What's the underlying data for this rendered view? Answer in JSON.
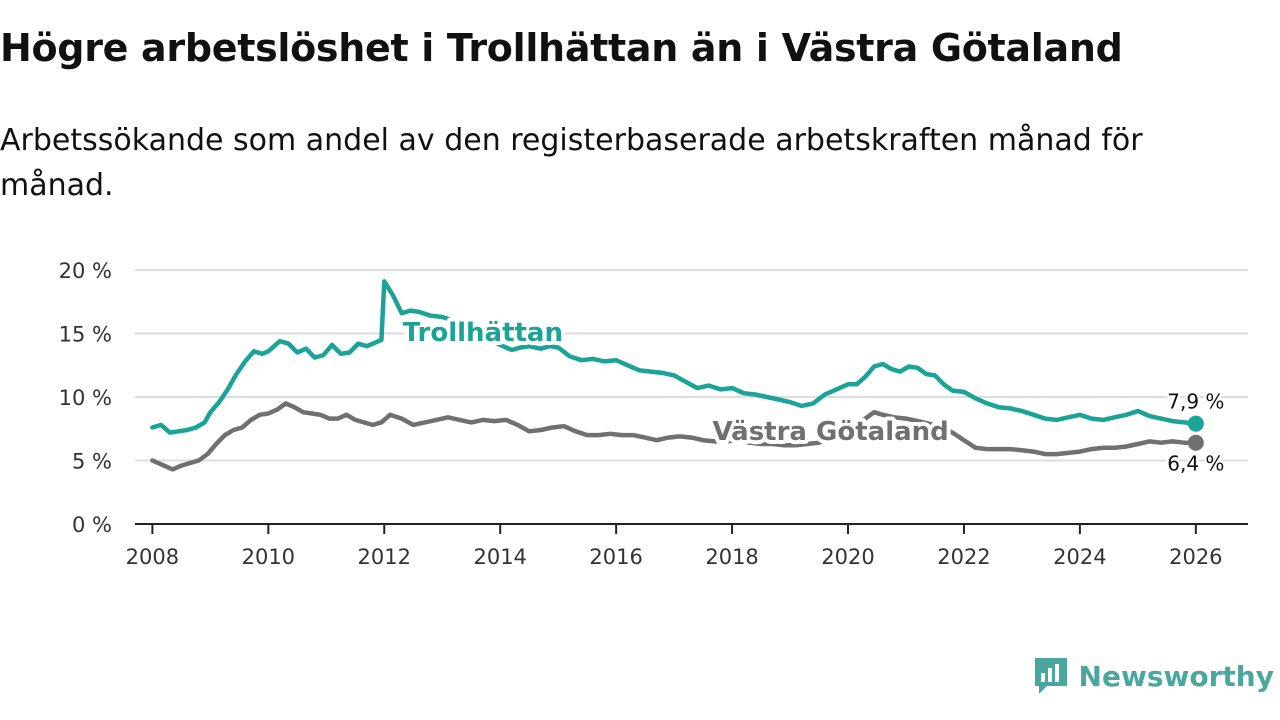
{
  "header": {
    "title": "Högre arbetslöshet i Trollhättan än i Västra Götaland",
    "subtitle": "Arbetssökande som andel av den registerbaserade arbetskraften månad för månad."
  },
  "brand": {
    "name": "Newsworthy",
    "icon": "newsworthy-logo-icon"
  },
  "colors": {
    "trollhattan": "#1aa396",
    "vastra": "#707073",
    "grid": "#dddddd",
    "axis": "#222222"
  },
  "chart_data": {
    "type": "line",
    "title": "Högre arbetslöshet i Trollhättan än i Västra Götaland",
    "subtitle": "Arbetssökande som andel av den registerbaserade arbetskraften månad för månad.",
    "xlabel": "",
    "ylabel": "",
    "xlim": [
      2007.7,
      2026.9
    ],
    "ylim": [
      0,
      20
    ],
    "x_ticks": [
      2008,
      2010,
      2012,
      2014,
      2016,
      2018,
      2020,
      2022,
      2024,
      2026
    ],
    "x_tick_labels": [
      "2008",
      "2010",
      "2012",
      "2014",
      "2016",
      "2018",
      "2020",
      "2022",
      "2024",
      "2026"
    ],
    "y_ticks": [
      0,
      5,
      10,
      15,
      20
    ],
    "y_tick_labels": [
      "0 %",
      "5 %",
      "10 %",
      "15 %",
      "20 %"
    ],
    "grid": true,
    "series": [
      {
        "name": "Trollhättan",
        "end_label": "7,9 %",
        "x": [
          2008.0,
          2008.15,
          2008.3,
          2008.45,
          2008.6,
          2008.75,
          2008.9,
          2009.0,
          2009.15,
          2009.3,
          2009.45,
          2009.6,
          2009.75,
          2009.9,
          2010.0,
          2010.2,
          2010.35,
          2010.5,
          2010.65,
          2010.8,
          2010.95,
          2011.1,
          2011.25,
          2011.4,
          2011.55,
          2011.7,
          2011.85,
          2011.95,
          2012.0,
          2012.15,
          2012.3,
          2012.45,
          2012.6,
          2012.8,
          2013.0,
          2013.2,
          2013.4,
          2013.6,
          2013.8,
          2014.0,
          2014.2,
          2014.35,
          2014.5,
          2014.7,
          2014.85,
          2015.0,
          2015.2,
          2015.4,
          2015.6,
          2015.8,
          2016.0,
          2016.2,
          2016.4,
          2016.6,
          2016.8,
          2017.0,
          2017.2,
          2017.4,
          2017.6,
          2017.8,
          2018.0,
          2018.2,
          2018.4,
          2018.6,
          2018.8,
          2019.0,
          2019.2,
          2019.4,
          2019.6,
          2019.8,
          2020.0,
          2020.15,
          2020.3,
          2020.45,
          2020.6,
          2020.75,
          2020.9,
          2021.05,
          2021.2,
          2021.35,
          2021.5,
          2021.65,
          2021.8,
          2022.0,
          2022.2,
          2022.4,
          2022.6,
          2022.8,
          2023.0,
          2023.2,
          2023.4,
          2023.6,
          2023.8,
          2024.0,
          2024.2,
          2024.4,
          2024.6,
          2024.8,
          2025.0,
          2025.2,
          2025.4,
          2025.6,
          2025.8,
          2026.0
        ],
        "values": [
          7.6,
          7.8,
          7.2,
          7.3,
          7.4,
          7.6,
          8.0,
          8.8,
          9.6,
          10.6,
          11.8,
          12.8,
          13.6,
          13.4,
          13.6,
          14.4,
          14.2,
          13.5,
          13.8,
          13.1,
          13.3,
          14.1,
          13.4,
          13.5,
          14.2,
          14.0,
          14.3,
          14.5,
          19.1,
          18.0,
          16.6,
          16.8,
          16.7,
          16.4,
          16.3,
          16.0,
          15.8,
          15.3,
          14.6,
          14.1,
          13.7,
          13.9,
          14.0,
          13.8,
          14.0,
          13.9,
          13.2,
          12.9,
          13.0,
          12.8,
          12.9,
          12.5,
          12.1,
          12.0,
          11.9,
          11.7,
          11.2,
          10.7,
          10.9,
          10.6,
          10.7,
          10.3,
          10.2,
          10.0,
          9.8,
          9.6,
          9.3,
          9.5,
          10.2,
          10.6,
          11.0,
          11.0,
          11.6,
          12.4,
          12.6,
          12.2,
          12.0,
          12.4,
          12.3,
          11.8,
          11.7,
          11.0,
          10.5,
          10.4,
          9.9,
          9.5,
          9.2,
          9.1,
          8.9,
          8.6,
          8.3,
          8.2,
          8.4,
          8.6,
          8.3,
          8.2,
          8.4,
          8.6,
          8.9,
          8.5,
          8.3,
          8.1,
          8.0,
          7.9
        ]
      },
      {
        "name": "Västra Götaland",
        "end_label": "6,4 %",
        "x": [
          2008.0,
          2008.15,
          2008.35,
          2008.5,
          2008.65,
          2008.8,
          2008.95,
          2009.1,
          2009.25,
          2009.4,
          2009.55,
          2009.7,
          2009.85,
          2010.0,
          2010.15,
          2010.3,
          2010.45,
          2010.6,
          2010.75,
          2010.9,
          2011.05,
          2011.2,
          2011.35,
          2011.5,
          2011.65,
          2011.8,
          2011.95,
          2012.1,
          2012.3,
          2012.5,
          2012.7,
          2012.9,
          2013.1,
          2013.3,
          2013.5,
          2013.7,
          2013.9,
          2014.1,
          2014.3,
          2014.5,
          2014.7,
          2014.9,
          2015.1,
          2015.3,
          2015.5,
          2015.7,
          2015.9,
          2016.1,
          2016.3,
          2016.5,
          2016.7,
          2016.9,
          2017.1,
          2017.3,
          2017.5,
          2017.7,
          2017.9,
          2018.1,
          2018.3,
          2018.5,
          2018.7,
          2018.9,
          2019.1,
          2019.3,
          2019.5,
          2019.7,
          2019.9,
          2020.1,
          2020.3,
          2020.45,
          2020.6,
          2020.8,
          2021.0,
          2021.2,
          2021.4,
          2021.6,
          2021.8,
          2022.0,
          2022.2,
          2022.4,
          2022.6,
          2022.8,
          2023.0,
          2023.2,
          2023.4,
          2023.6,
          2023.8,
          2024.0,
          2024.2,
          2024.4,
          2024.6,
          2024.8,
          2025.0,
          2025.2,
          2025.4,
          2025.6,
          2025.8,
          2026.0
        ],
        "values": [
          5.0,
          4.7,
          4.3,
          4.6,
          4.8,
          5.0,
          5.5,
          6.3,
          7.0,
          7.4,
          7.6,
          8.2,
          8.6,
          8.7,
          9.0,
          9.5,
          9.2,
          8.8,
          8.7,
          8.6,
          8.3,
          8.3,
          8.6,
          8.2,
          8.0,
          7.8,
          8.0,
          8.6,
          8.3,
          7.8,
          8.0,
          8.2,
          8.4,
          8.2,
          8.0,
          8.2,
          8.1,
          8.2,
          7.8,
          7.3,
          7.4,
          7.6,
          7.7,
          7.3,
          7.0,
          7.0,
          7.1,
          7.0,
          7.0,
          6.8,
          6.6,
          6.8,
          6.9,
          6.8,
          6.6,
          6.5,
          6.5,
          6.6,
          6.4,
          6.3,
          6.3,
          6.2,
          6.2,
          6.3,
          6.4,
          6.8,
          7.4,
          7.8,
          8.3,
          8.8,
          8.6,
          8.4,
          8.3,
          8.1,
          7.9,
          7.6,
          7.2,
          6.6,
          6.0,
          5.9,
          5.9,
          5.9,
          5.8,
          5.7,
          5.5,
          5.5,
          5.6,
          5.7,
          5.9,
          6.0,
          6.0,
          6.1,
          6.3,
          6.5,
          6.4,
          6.5,
          6.4,
          6.4
        ]
      }
    ]
  }
}
